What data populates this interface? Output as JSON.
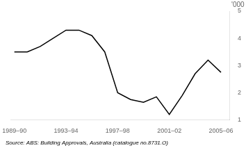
{
  "chart_data": {
    "type": "line",
    "x": [
      1989.5,
      1990.5,
      1991.5,
      1992.5,
      1993.5,
      1994.5,
      1995.5,
      1996.5,
      1997.5,
      1998.5,
      1999.5,
      2000.5,
      2001.5,
      2002.5,
      2003.5,
      2004.5,
      2005.5
    ],
    "values": [
      3.5,
      3.5,
      3.7,
      4.0,
      4.3,
      4.3,
      4.1,
      3.5,
      2.0,
      1.75,
      1.65,
      1.85,
      1.2,
      1.9,
      2.7,
      3.2,
      2.75
    ],
    "color": "#000000",
    "xlim": [
      1989.2,
      2006.2
    ],
    "xticks": [
      {
        "value": 1989.5,
        "label": "1989–90"
      },
      {
        "value": 1993.5,
        "label": "1993–94"
      },
      {
        "value": 1997.5,
        "label": "1997–98"
      },
      {
        "value": 2001.5,
        "label": "2001–02"
      },
      {
        "value": 2005.5,
        "label": "2005–06"
      }
    ],
    "ylim": [
      1,
      5
    ],
    "yticks": [
      1,
      2,
      3,
      4,
      5
    ],
    "ylabel": "'000",
    "annotations": [
      "Source: ABS: Building Approvals, Australia (catalogue no.8731.O)"
    ],
    "grid": false
  }
}
